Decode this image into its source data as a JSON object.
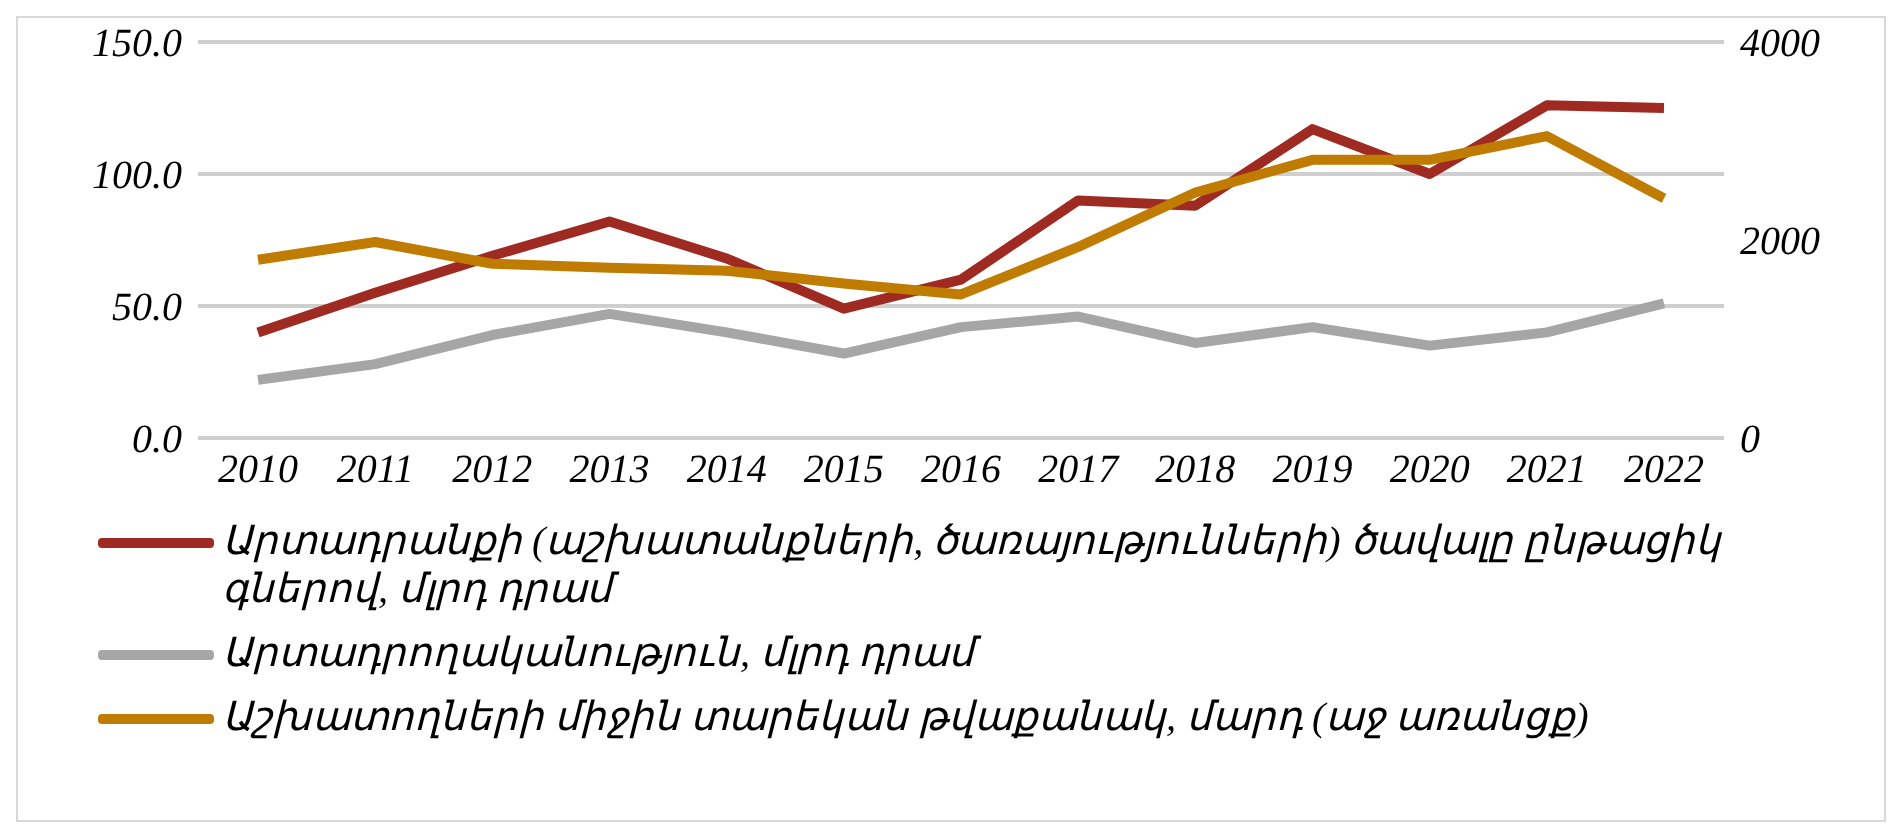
{
  "chart_data": {
    "type": "line",
    "categories": [
      "2010",
      "2011",
      "2012",
      "2013",
      "2014",
      "2015",
      "2016",
      "2017",
      "2018",
      "2019",
      "2020",
      "2021",
      "2022"
    ],
    "series": [
      {
        "name": "Արտադրանքի (աշխատանքների, ծառայությունների) ծավալը ընթացիկ գներով, մլրդ դրամ",
        "color": "#9e2a22",
        "values": [
          40,
          55,
          69,
          82,
          68,
          49,
          60,
          90,
          88,
          117,
          100,
          126,
          125
        ]
      },
      {
        "name": "Արտադրողականություն, մլրդ դրամ",
        "color": "#a6a6a6",
        "values": [
          22,
          28,
          39,
          47,
          40,
          32,
          42,
          46,
          36,
          42,
          35,
          40,
          51
        ]
      },
      {
        "name": "Աշխատողների միջին տարեկան թվաքանակ, մարդ (աջ առանցք)",
        "color": "#bf7c00",
        "axis": "y2",
        "values": [
          1800,
          1980,
          1760,
          1720,
          1690,
          1560,
          1450,
          1930,
          2480,
          2810,
          2810,
          3050,
          2420
        ]
      }
    ],
    "ylim": [
      0,
      150
    ],
    "yticks": [
      {
        "value": 0,
        "label": "0.0"
      },
      {
        "value": 50,
        "label": "50.0"
      },
      {
        "value": 100,
        "label": "100.0"
      },
      {
        "value": 150,
        "label": "150.0"
      }
    ],
    "y2lim": [
      0,
      4000
    ],
    "y2ticks": [
      0,
      2000,
      4000
    ],
    "grid": "y",
    "legend": "bottom",
    "marker": "none",
    "line_style": "solid"
  }
}
